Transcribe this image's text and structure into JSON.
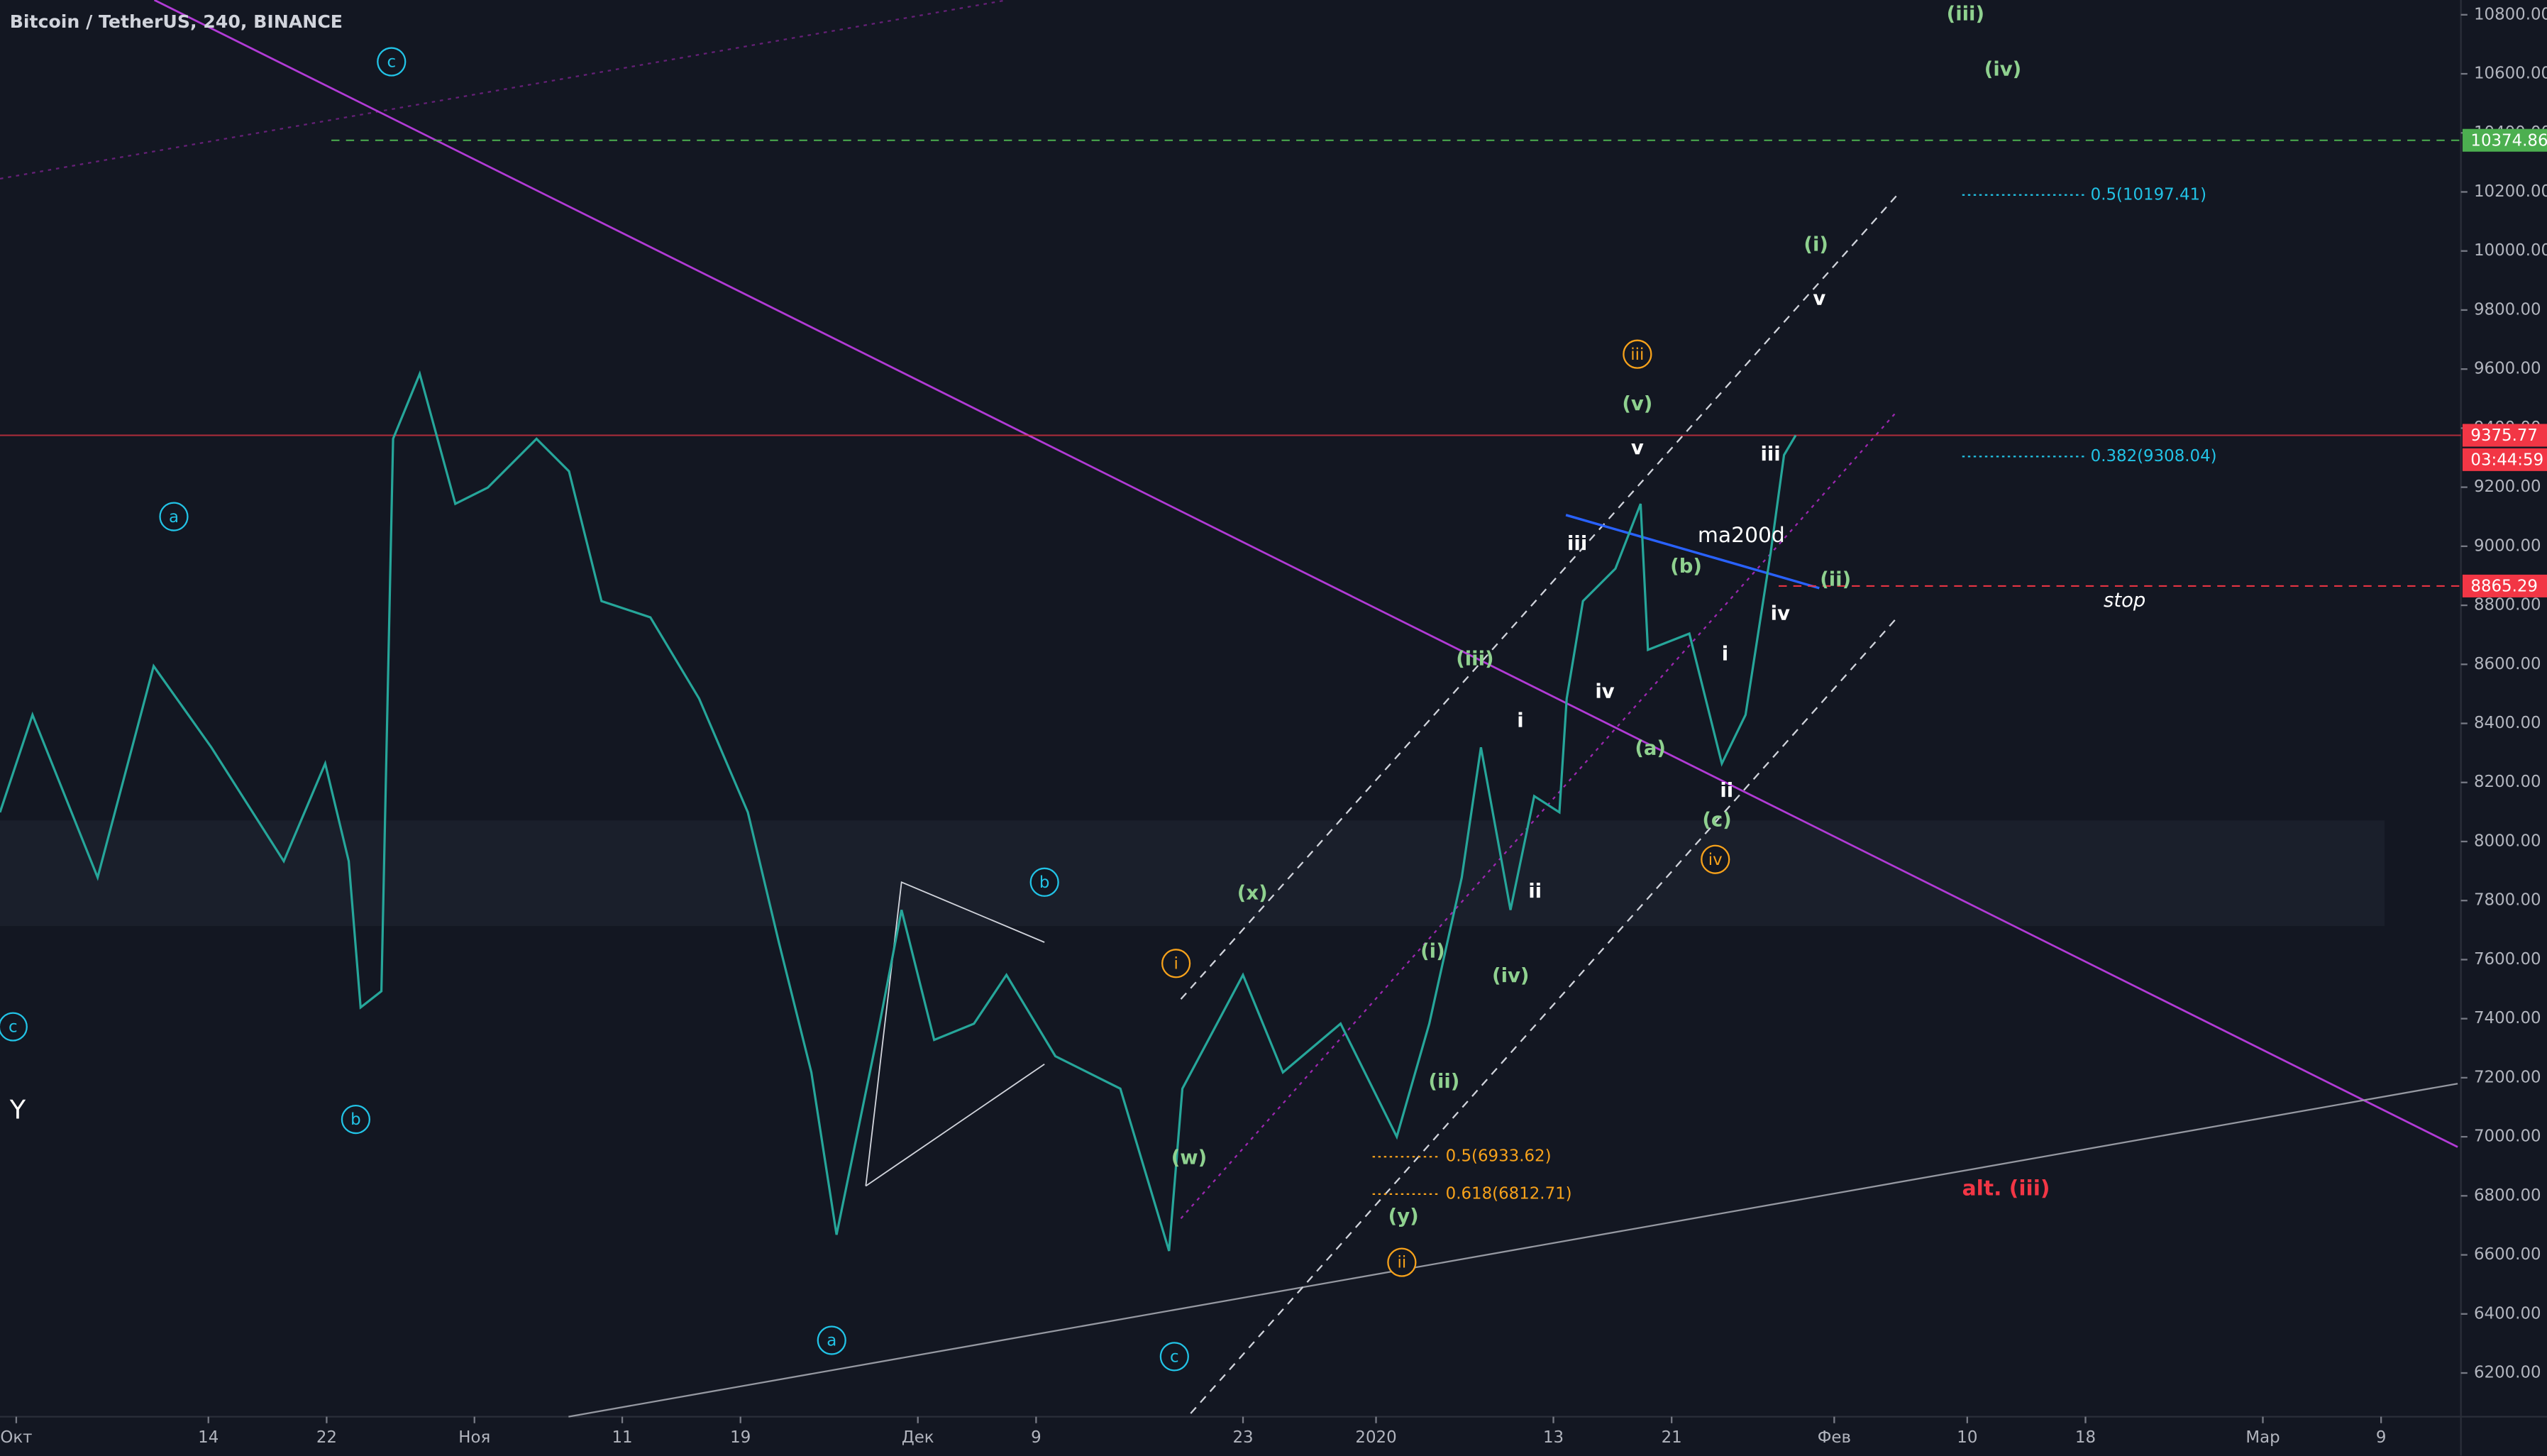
{
  "title": "Bitcoin / TetherUS, 240, BINANCE",
  "chart_data": {
    "type": "line",
    "color": "#26a69a",
    "x": [
      -1.1,
      1.1,
      5.5,
      9.3,
      13.2,
      18.1,
      20.9,
      22.5,
      23.3,
      24.7,
      25.5,
      27.3,
      29.7,
      31.9,
      35.2,
      37.4,
      39.6,
      42.9,
      46.2,
      49.5,
      51.6,
      53.8,
      55.5,
      58.2,
      59.9,
      62.1,
      64.8,
      67.0,
      70.3,
      74.7,
      78.0,
      78.9,
      83.0,
      85.7,
      89.6,
      93.4,
      95.6,
      97.8,
      99.1,
      101.1,
      102.7,
      104.4,
      104.9,
      106.0,
      108.2,
      109.9,
      110.4,
      113.2,
      115.4,
      117.0,
      118.7,
      119.6,
      120.4
    ],
    "values": [
      8099,
      8429,
      7878,
      8594,
      8319,
      7933,
      8264,
      7933,
      7438,
      7493,
      9364,
      9584,
      9144,
      9199,
      9364,
      9254,
      8814,
      8759,
      8484,
      8099,
      7658,
      7218,
      6668,
      7328,
      7768,
      7328,
      7383,
      7548,
      7273,
      7163,
      6613,
      7163,
      7548,
      7218,
      7383,
      7000,
      7383,
      7878,
      8319,
      7768,
      8154,
      8099,
      8484,
      8814,
      8924,
      9144,
      8649,
      8704,
      8264,
      8429,
      8979,
      9309,
      9375.77
    ],
    "xlim": [
      -1.1,
      165.4
    ],
    "ylim": [
      6052,
      10850
    ],
    "xticks": [
      {
        "value": 0,
        "label": "Окт"
      },
      {
        "value": 13,
        "label": "14"
      },
      {
        "value": 21,
        "label": "22"
      },
      {
        "value": 31,
        "label": "Ноя"
      },
      {
        "value": 41,
        "label": "11"
      },
      {
        "value": 49,
        "label": "19"
      },
      {
        "value": 61,
        "label": "Дек"
      },
      {
        "value": 69,
        "label": "9"
      },
      {
        "value": 83,
        "label": "23"
      },
      {
        "value": 92,
        "label": "2020"
      },
      {
        "value": 104,
        "label": "13"
      },
      {
        "value": 112,
        "label": "21"
      },
      {
        "value": 123,
        "label": "Фев"
      },
      {
        "value": 132,
        "label": "10"
      },
      {
        "value": 140,
        "label": "18"
      },
      {
        "value": 152,
        "label": "Мар"
      },
      {
        "value": 160,
        "label": "9"
      }
    ],
    "yticks": [
      {
        "value": 6200,
        "label": "6200.00"
      },
      {
        "value": 6400,
        "label": "6400.00"
      },
      {
        "value": 6600,
        "label": "6600.00"
      },
      {
        "value": 6800,
        "label": "6800.00"
      },
      {
        "value": 7000,
        "label": "7000.00"
      },
      {
        "value": 7200,
        "label": "7200.00"
      },
      {
        "value": 7400,
        "label": "7400.00"
      },
      {
        "value": 7600,
        "label": "7600.00"
      },
      {
        "value": 7800,
        "label": "7800.00"
      },
      {
        "value": 8000,
        "label": "8000.00"
      },
      {
        "value": 8200,
        "label": "8200.00"
      },
      {
        "value": 8400,
        "label": "8400.00"
      },
      {
        "value": 8600,
        "label": "8600.00"
      },
      {
        "value": 8800,
        "label": "8800.00"
      },
      {
        "value": 9000,
        "label": "9000.00"
      },
      {
        "value": 9200,
        "label": "9200.00"
      },
      {
        "value": 9400,
        "label": "9400.00"
      },
      {
        "value": 9600,
        "label": "9600.00"
      },
      {
        "value": 9800,
        "label": "9800.00"
      },
      {
        "value": 10000,
        "label": "10000.00"
      },
      {
        "value": 10200,
        "label": "10200.00"
      },
      {
        "value": 10400,
        "label": "10400.00"
      },
      {
        "value": 10600,
        "label": "10600.00"
      },
      {
        "value": 10800,
        "label": "10800.00"
      }
    ],
    "levels": [
      {
        "value": 10374.86,
        "color": "#4caf50"
      },
      {
        "value": 9375.77,
        "color": "#f23645",
        "countdown": "03:44:59"
      },
      {
        "value": 8865.29,
        "color": "#f23645"
      }
    ],
    "annotations": [
      "c",
      "a",
      "c",
      "b",
      "b",
      "a",
      "c",
      "iii",
      "i",
      "ii",
      "iv",
      "(iii)",
      "(iv)",
      "(i)",
      "(v)",
      "(x)",
      "(iii)",
      "(i)",
      "(iv)",
      "(ii)",
      "(w)",
      "(y)",
      "(b)",
      "(a)",
      "(ii)",
      "(c)",
      "v",
      "v",
      "iii",
      "iii",
      "iv",
      "i",
      "ii",
      "i",
      "iv",
      "ii",
      "ma200d",
      "stop",
      "alt. (iii)",
      "Y",
      "0.5(6933.62)",
      "0.618(6812.71)",
      "0.5(10197.41)",
      "0.382(9308.04)"
    ]
  }
}
